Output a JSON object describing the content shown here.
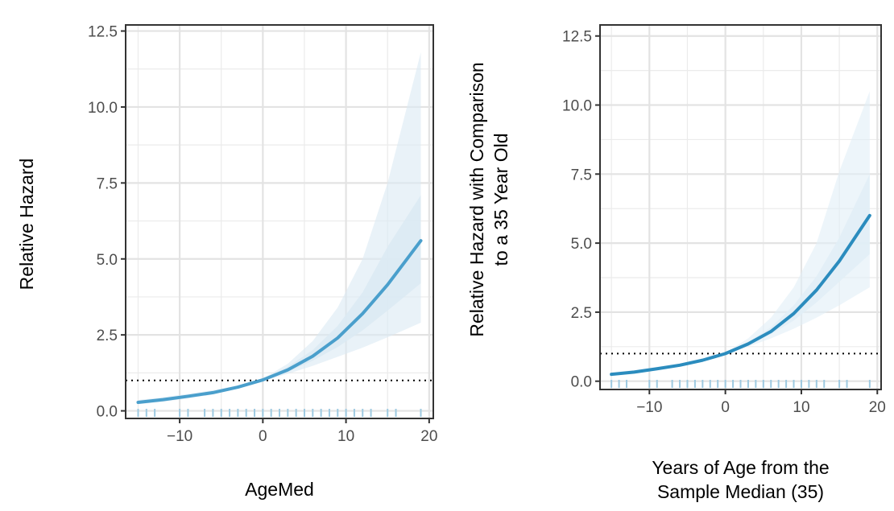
{
  "chart_data": [
    {
      "type": "line",
      "title": "",
      "xlabel": "AgeMed",
      "ylabel": "Relative Hazard",
      "xlim": [
        -16.5,
        20.5
      ],
      "ylim": [
        -0.25,
        12.7
      ],
      "xticks": [
        -10,
        0,
        10,
        20
      ],
      "xtick_labels": [
        "−10",
        "0",
        "10",
        "20"
      ],
      "yticks": [
        0,
        2.5,
        5,
        7.5,
        10,
        12.5
      ],
      "ytick_labels": [
        "0.0",
        "2.5",
        "5.0",
        "7.5",
        "10.0",
        "12.5"
      ],
      "grid": true,
      "reference_line": 1,
      "line_color": "#4a9fcc",
      "band_color": "#dbeaf3",
      "series": [
        {
          "x": [
            -15,
            -12,
            -9,
            -6,
            -3,
            0,
            3,
            6,
            9,
            12,
            15,
            19
          ],
          "y": [
            0.28,
            0.37,
            0.48,
            0.6,
            0.78,
            1.02,
            1.35,
            1.8,
            2.4,
            3.2,
            4.15,
            5.6
          ],
          "lower_outer": [
            0.22,
            0.3,
            0.41,
            0.54,
            0.73,
            0.98,
            1.22,
            1.48,
            1.78,
            2.08,
            2.42,
            2.9
          ],
          "upper_outer": [
            0.36,
            0.45,
            0.56,
            0.68,
            0.84,
            1.06,
            1.55,
            2.3,
            3.4,
            5.0,
            7.5,
            11.8
          ],
          "lower_inner": [
            0.25,
            0.34,
            0.45,
            0.57,
            0.76,
            1.0,
            1.28,
            1.65,
            2.1,
            2.65,
            3.3,
            4.2
          ],
          "upper_inner": [
            0.32,
            0.41,
            0.52,
            0.64,
            0.81,
            1.04,
            1.45,
            2.0,
            2.8,
            3.9,
            5.4,
            7.1
          ]
        }
      ],
      "rug": [
        -15,
        -14,
        -13,
        -10,
        -9,
        -7,
        -6,
        -5,
        -4,
        -3,
        -2,
        -1,
        0,
        1,
        2,
        3,
        4,
        5,
        6,
        7,
        8,
        9,
        10,
        11,
        12,
        13,
        15,
        16,
        19
      ]
    },
    {
      "type": "line",
      "title": "",
      "xlabel": "Years of Age from the Sample Median (35)",
      "xlabel_lines": [
        "Years of Age from the",
        "Sample Median (35)"
      ],
      "ylabel": "Relative Hazard with Comparison to a 35 Year Old",
      "ylabel_lines": [
        "Relative Hazard with Comparison",
        "to a 35 Year Old"
      ],
      "xlim": [
        -16.5,
        20.5
      ],
      "ylim": [
        -0.3,
        12.9
      ],
      "xticks": [
        -10,
        0,
        10,
        20
      ],
      "xtick_labels": [
        "−10",
        "0",
        "10",
        "20"
      ],
      "yticks": [
        0,
        2.5,
        5,
        7.5,
        10,
        12.5
      ],
      "ytick_labels": [
        "0.0",
        "2.5",
        "5.0",
        "7.5",
        "10.0",
        "12.5"
      ],
      "grid": true,
      "reference_line": 1,
      "line_color": "#2b8cbe",
      "band_color": "#e1eef6",
      "series": [
        {
          "x": [
            -15,
            -12,
            -9,
            -6,
            -3,
            0,
            3,
            6,
            9,
            12,
            15,
            19
          ],
          "y": [
            0.25,
            0.33,
            0.45,
            0.58,
            0.76,
            1.0,
            1.35,
            1.8,
            2.45,
            3.3,
            4.35,
            6.0
          ],
          "lower_outer": [
            0.2,
            0.28,
            0.4,
            0.54,
            0.73,
            0.98,
            1.25,
            1.55,
            1.9,
            2.3,
            2.75,
            3.4
          ],
          "upper_outer": [
            0.32,
            0.4,
            0.52,
            0.64,
            0.8,
            1.03,
            1.55,
            2.3,
            3.4,
            5.0,
            7.6,
            10.5
          ],
          "lower_inner": [
            0.22,
            0.31,
            0.43,
            0.56,
            0.75,
            0.99,
            1.3,
            1.7,
            2.2,
            2.85,
            3.6,
            4.6
          ],
          "upper_inner": [
            0.28,
            0.36,
            0.48,
            0.61,
            0.78,
            1.02,
            1.42,
            1.95,
            2.75,
            3.8,
            5.2,
            7.5
          ]
        }
      ],
      "rug": [
        -15,
        -14,
        -13,
        -10,
        -9,
        -7,
        -6,
        -5,
        -4,
        -3,
        -2,
        -1,
        0,
        1,
        2,
        3,
        4,
        5,
        6,
        7,
        8,
        9,
        10,
        11,
        12,
        13,
        15,
        16,
        19
      ]
    }
  ]
}
